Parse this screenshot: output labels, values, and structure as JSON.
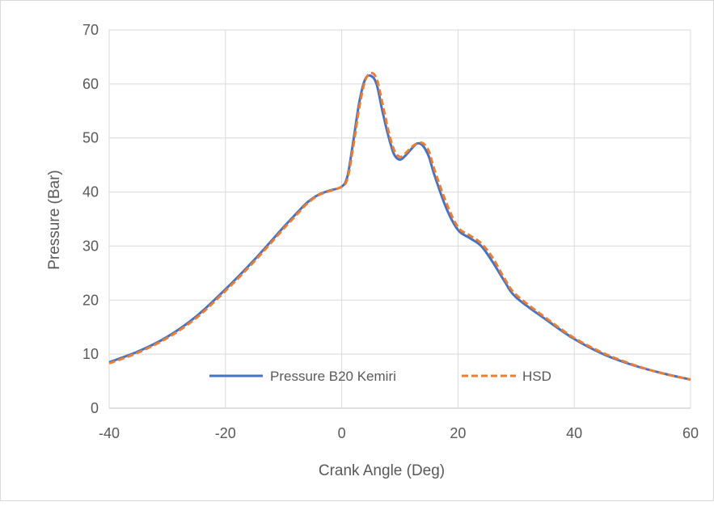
{
  "chart_data": {
    "type": "line",
    "title": "",
    "xlabel": "Crank Angle (Deg)",
    "ylabel": "Pressure (Bar)",
    "xlim": [
      -40,
      60
    ],
    "ylim": [
      0,
      70
    ],
    "xticks": [
      -40,
      -20,
      0,
      20,
      40,
      60
    ],
    "yticks": [
      0,
      10,
      20,
      30,
      40,
      50,
      60,
      70
    ],
    "grid": true,
    "legend_position": "bottom-inside",
    "series": [
      {
        "name": "Pressure B20 Kemiri",
        "color": "#4472C4",
        "style": "solid",
        "points": [
          [
            -40,
            8.5
          ],
          [
            -35,
            10.5
          ],
          [
            -30,
            13.2
          ],
          [
            -25,
            17.0
          ],
          [
            -20,
            22.0
          ],
          [
            -15,
            27.5
          ],
          [
            -10,
            33.5
          ],
          [
            -8,
            35.8
          ],
          [
            -6,
            38.0
          ],
          [
            -4,
            39.5
          ],
          [
            -2,
            40.3
          ],
          [
            0,
            41.0
          ],
          [
            1,
            43.0
          ],
          [
            2,
            49.5
          ],
          [
            3,
            56.5
          ],
          [
            4,
            60.8
          ],
          [
            5,
            61.5
          ],
          [
            6,
            60.0
          ],
          [
            7,
            55.0
          ],
          [
            8,
            50.5
          ],
          [
            9,
            47.0
          ],
          [
            10,
            46.0
          ],
          [
            11,
            46.8
          ],
          [
            12,
            48.0
          ],
          [
            13,
            49.0
          ],
          [
            14,
            48.5
          ],
          [
            15,
            46.5
          ],
          [
            16,
            43.0
          ],
          [
            18,
            37.0
          ],
          [
            20,
            33.0
          ],
          [
            22,
            31.5
          ],
          [
            24,
            30.0
          ],
          [
            26,
            27.0
          ],
          [
            28,
            23.5
          ],
          [
            30,
            20.5
          ],
          [
            35,
            16.5
          ],
          [
            40,
            12.8
          ],
          [
            45,
            10.0
          ],
          [
            50,
            8.0
          ],
          [
            55,
            6.5
          ],
          [
            60,
            5.3
          ]
        ]
      },
      {
        "name": "HSD",
        "color": "#ED7D31",
        "style": "dashed",
        "points": [
          [
            -40,
            8.3
          ],
          [
            -35,
            10.3
          ],
          [
            -30,
            13.0
          ],
          [
            -25,
            16.7
          ],
          [
            -20,
            21.7
          ],
          [
            -15,
            27.2
          ],
          [
            -10,
            33.2
          ],
          [
            -8,
            35.5
          ],
          [
            -6,
            37.8
          ],
          [
            -4,
            39.4
          ],
          [
            -2,
            40.2
          ],
          [
            0,
            41.0
          ],
          [
            1,
            42.5
          ],
          [
            2,
            48.5
          ],
          [
            3,
            55.5
          ],
          [
            4,
            60.5
          ],
          [
            5,
            62.0
          ],
          [
            6,
            61.0
          ],
          [
            7,
            56.5
          ],
          [
            8,
            51.5
          ],
          [
            9,
            47.8
          ],
          [
            10,
            46.5
          ],
          [
            11,
            47.2
          ],
          [
            12,
            48.3
          ],
          [
            13,
            49.0
          ],
          [
            14,
            49.0
          ],
          [
            15,
            47.5
          ],
          [
            16,
            44.0
          ],
          [
            18,
            38.0
          ],
          [
            20,
            33.5
          ],
          [
            22,
            32.0
          ],
          [
            24,
            30.5
          ],
          [
            26,
            27.8
          ],
          [
            28,
            24.0
          ],
          [
            30,
            21.0
          ],
          [
            35,
            16.8
          ],
          [
            40,
            13.0
          ],
          [
            45,
            10.2
          ],
          [
            50,
            8.1
          ],
          [
            55,
            6.5
          ],
          [
            60,
            5.3
          ]
        ]
      }
    ]
  }
}
